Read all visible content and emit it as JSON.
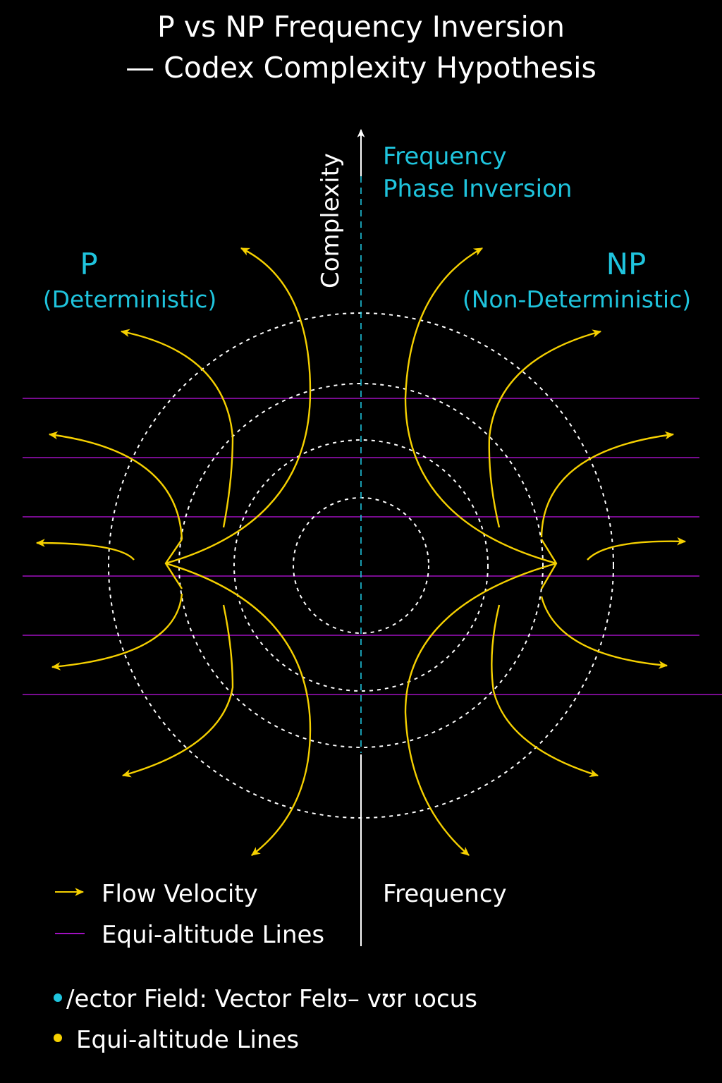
{
  "title": {
    "line1": "P vs NP Frequency Inversion",
    "line2": "— Codex Complexity Hypothesis"
  },
  "axis": {
    "vertical_label": "Complexity",
    "bottom_label": "Frequency"
  },
  "annotation": {
    "line1": "Frequency",
    "line2": "Phase Inversion"
  },
  "regions": {
    "left_title": "P",
    "left_subtitle": "(Deterministic)",
    "right_title": "NP",
    "right_subtitle": "(Non-Deterministic)"
  },
  "legend": {
    "flow_velocity": "Flow Velocity",
    "equi_altitude": "Equi-altitude Lines"
  },
  "footer": {
    "item1": "/ector Field: Vector Felʊ– ᴠʊr ιocus",
    "item2": "Equi-altitude Lines"
  },
  "colors": {
    "background": "#000000",
    "flow": "#f5d000",
    "equi_lines": "#a010c0",
    "accent_cyan": "#1fc4dd",
    "rings": "#ffffff"
  },
  "icons": {
    "flow_arrow": "yellow-arrow-icon",
    "equi_line": "purple-line-icon",
    "bullet_cyan": "cyan-dot-icon",
    "bullet_yellow": "yellow-dot-icon"
  }
}
